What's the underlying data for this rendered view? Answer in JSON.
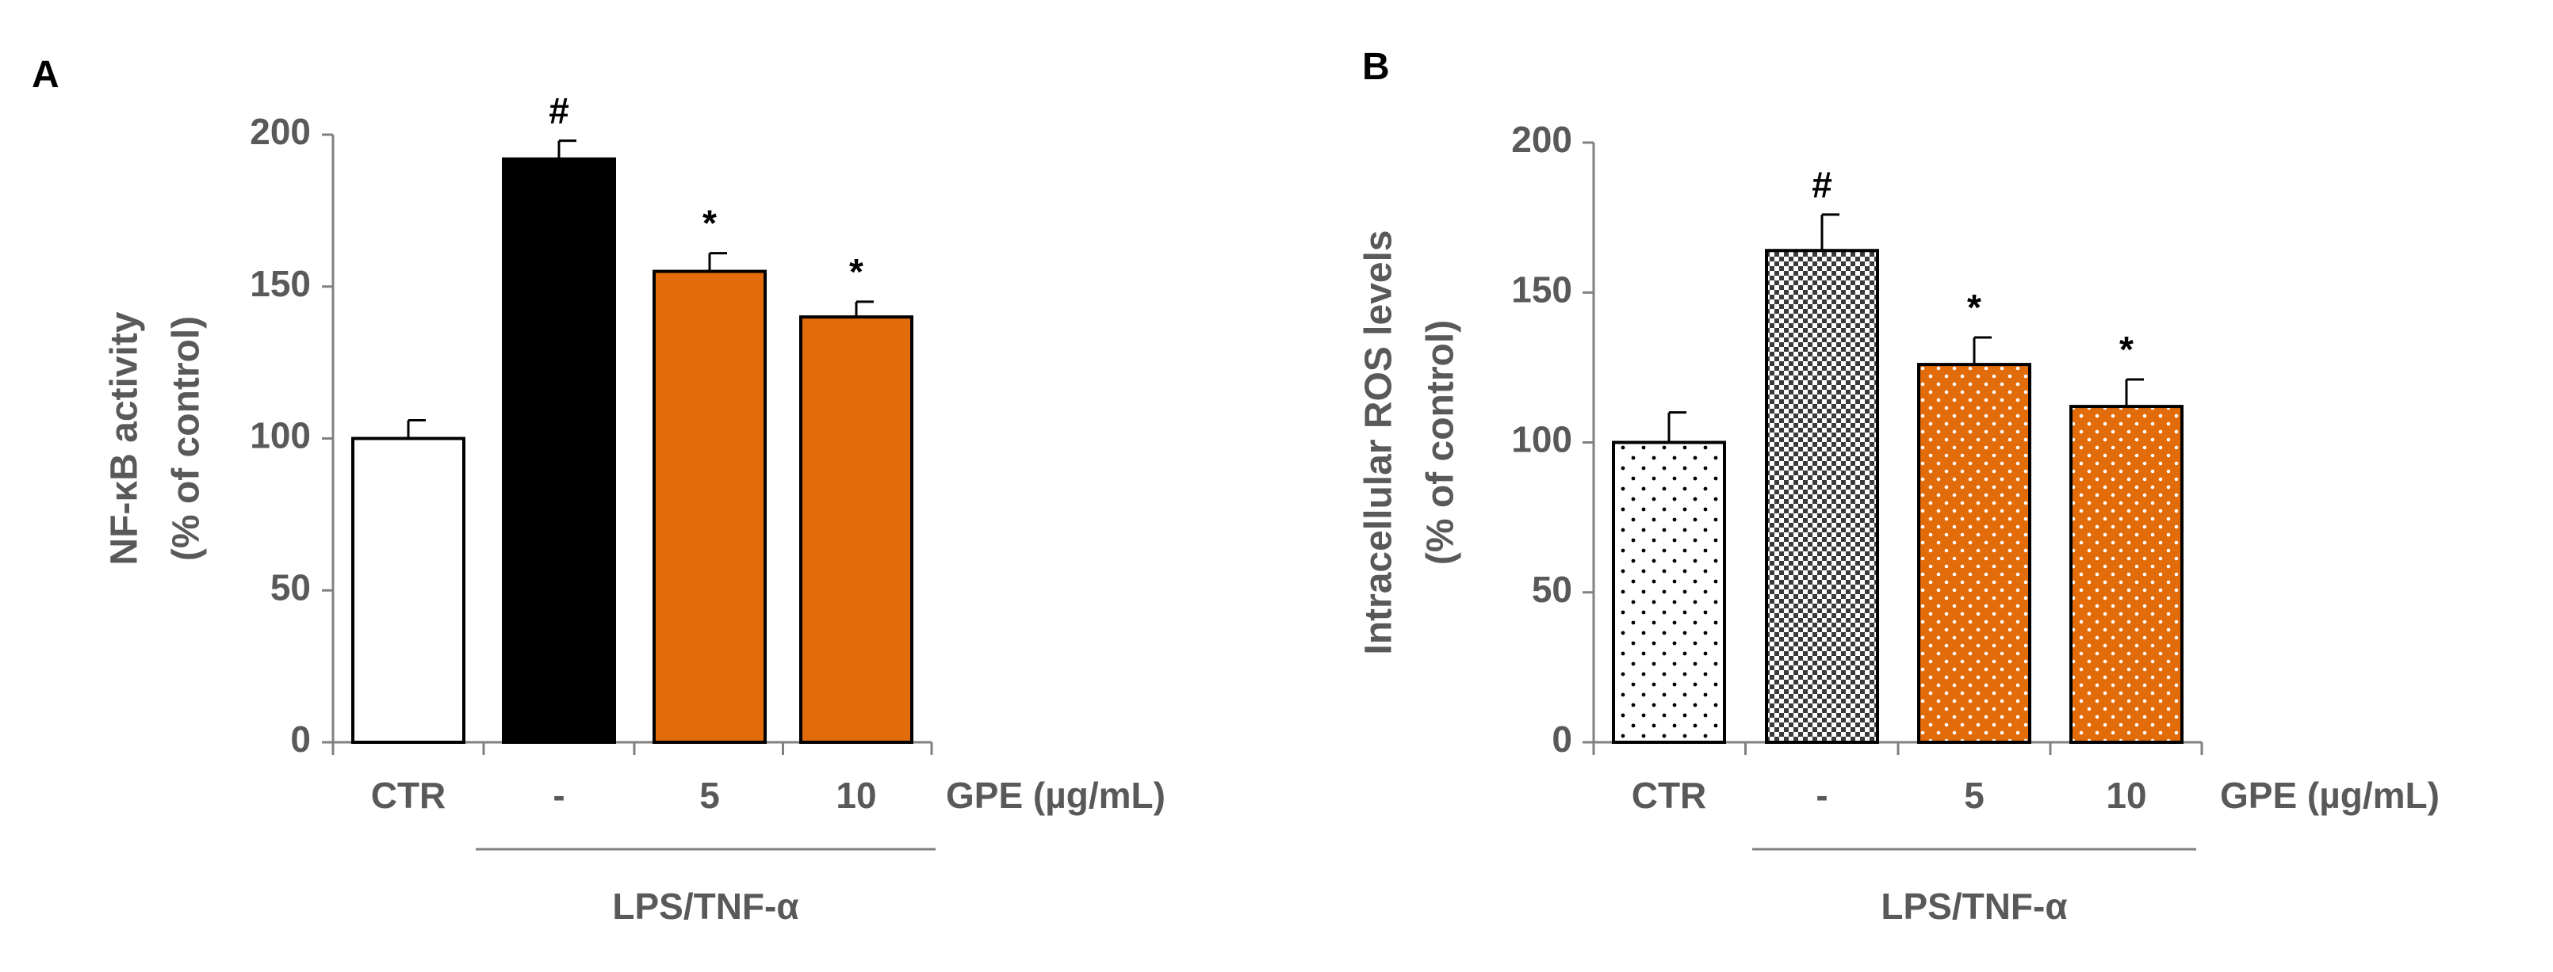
{
  "chart_data": [
    {
      "panel": "A",
      "type": "bar",
      "title": "",
      "ylabel_lines": [
        "NF-κB activity",
        "(% of control)"
      ],
      "ylim": [
        0,
        200
      ],
      "yticks": [
        0,
        50,
        100,
        150,
        200
      ],
      "categories": [
        "CTR",
        "-",
        "5",
        "10"
      ],
      "xaxis_label": "GPE (µg/mL)",
      "group_label": "LPS/TNF-α",
      "values": [
        100,
        192,
        155,
        140
      ],
      "errors": [
        6,
        6,
        6,
        5
      ],
      "annotations": [
        "",
        "#",
        "*",
        "*"
      ],
      "fills": [
        "#ffffff",
        "#000000",
        "#e36c0a",
        "#e36c0a"
      ],
      "patterns": [
        "solid",
        "solid",
        "solid",
        "solid"
      ]
    },
    {
      "panel": "B",
      "type": "bar",
      "title": "",
      "ylabel_lines": [
        "Intracellular ROS levels",
        "(% of control)"
      ],
      "ylim": [
        0,
        200
      ],
      "yticks": [
        0,
        50,
        100,
        150,
        200
      ],
      "categories": [
        "CTR",
        "-",
        "5",
        "10"
      ],
      "xaxis_label": "GPE (µg/mL)",
      "group_label": "LPS/TNF-α",
      "values": [
        100,
        164,
        126,
        112
      ],
      "errors": [
        10,
        12,
        9,
        9
      ],
      "annotations": [
        "",
        "#",
        "*",
        "*"
      ],
      "fills": [
        "#ffffff",
        "#404040",
        "#e36c0a",
        "#e36c0a"
      ],
      "patterns": [
        "dots-black",
        "checker",
        "dots-white",
        "dots-white"
      ]
    }
  ]
}
